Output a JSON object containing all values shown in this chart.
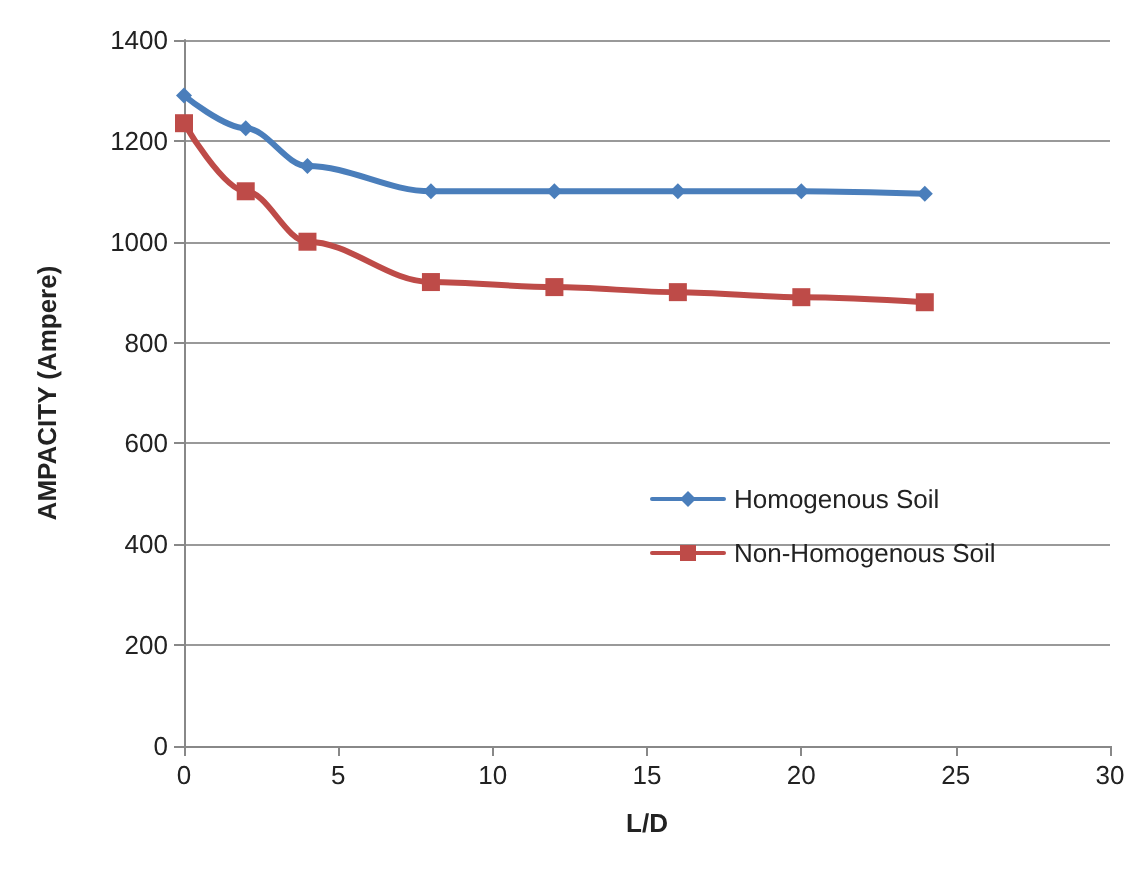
{
  "chart_data": {
    "type": "line",
    "xlabel": "L/D",
    "ylabel": "AMPACITY (Ampere)",
    "x": [
      0,
      2,
      4,
      8,
      12,
      16,
      20,
      24
    ],
    "series": [
      {
        "name": "Homogenous Soil",
        "color": "#4a7ebb",
        "marker": "diamond",
        "values": [
          1290,
          1225,
          1150,
          1100,
          1100,
          1100,
          1100,
          1095
        ]
      },
      {
        "name": "Non-Homogenous Soil",
        "color": "#be4b48",
        "marker": "square",
        "values": [
          1235,
          1100,
          1000,
          920,
          910,
          900,
          890,
          880
        ]
      }
    ],
    "xlim": [
      0,
      30
    ],
    "xticks": [
      0,
      5,
      10,
      15,
      20,
      25,
      30
    ],
    "ylim": [
      0,
      1400
    ],
    "yticks": [
      0,
      200,
      400,
      600,
      800,
      1000,
      1200,
      1400
    ],
    "grid": "y",
    "legend": "right",
    "line_style": "solid"
  }
}
